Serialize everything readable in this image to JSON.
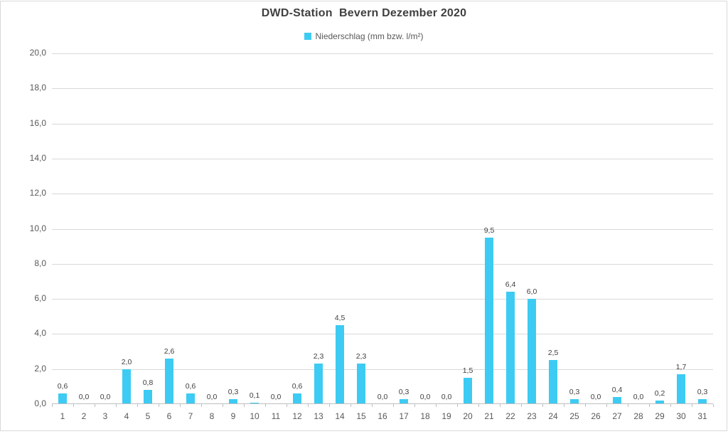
{
  "title": "DWD-Station  Bevern Dezember 2020",
  "legend": {
    "label": "Niederschlag (mm bzw. l/m²)",
    "marker_color": "#3dcbf3"
  },
  "colors": {
    "bar": "#3dcbf3",
    "gridline": "#d9d9d9",
    "axis_line": "#bfbfbf",
    "title_text": "#404040",
    "axis_text": "#595959",
    "value_text": "#404040",
    "frame_border": "#d9d9d9"
  },
  "chart_data": {
    "type": "bar",
    "title": "DWD-Station  Bevern Dezember 2020",
    "xlabel": "",
    "ylabel": "",
    "series_name": "Niederschlag (mm bzw. l/m²)",
    "categories": [
      "1",
      "2",
      "3",
      "4",
      "5",
      "6",
      "7",
      "8",
      "9",
      "10",
      "11",
      "12",
      "13",
      "14",
      "15",
      "16",
      "17",
      "18",
      "19",
      "20",
      "21",
      "22",
      "23",
      "24",
      "25",
      "26",
      "27",
      "28",
      "29",
      "30",
      "31"
    ],
    "values": [
      0.6,
      0.0,
      0.0,
      2.0,
      0.8,
      2.6,
      0.6,
      0.0,
      0.3,
      0.1,
      0.0,
      0.6,
      2.3,
      4.5,
      2.3,
      0.0,
      0.3,
      0.0,
      0.0,
      1.5,
      9.5,
      6.4,
      6.0,
      2.5,
      0.3,
      0.0,
      0.4,
      0.0,
      0.2,
      1.7,
      0.3
    ],
    "value_labels": [
      "0,6",
      "0,0",
      "0,0",
      "2,0",
      "0,8",
      "2,6",
      "0,6",
      "0,0",
      "0,3",
      "0,1",
      "0,0",
      "0,6",
      "2,3",
      "4,5",
      "2,3",
      "0,0",
      "0,3",
      "0,0",
      "0,0",
      "1,5",
      "9,5",
      "6,4",
      "6,0",
      "2,5",
      "0,3",
      "0,0",
      "0,4",
      "0,0",
      "0,2",
      "1,7",
      "0,3"
    ],
    "ylim": [
      0,
      20
    ],
    "ytick_step": 2,
    "ytick_labels": [
      "0,0",
      "2,0",
      "4,0",
      "6,0",
      "8,0",
      "10,0",
      "12,0",
      "14,0",
      "16,0",
      "18,0",
      "20,0"
    ],
    "grid": true,
    "legend_position": "top-center",
    "bar_color": "#3dcbf3"
  }
}
